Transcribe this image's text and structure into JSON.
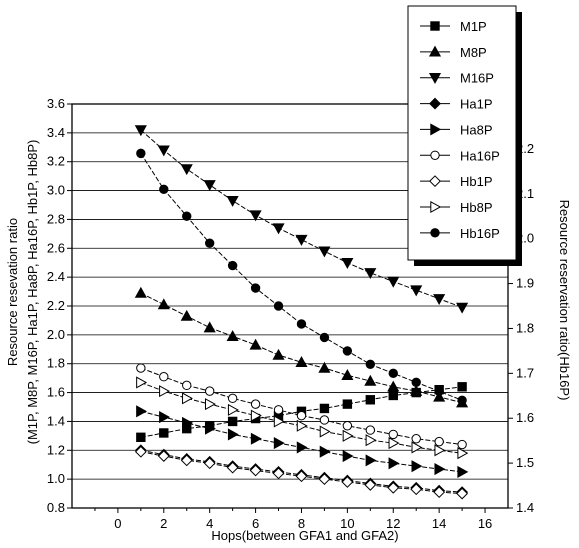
{
  "chart_data": {
    "type": "line",
    "xlabel": "Hops(between GFA1 and GFA2)",
    "ylabel_left_line1": "Resource resevation ratio",
    "ylabel_left_line2": "(M1P, M8P, M16P, Ha1P, Ha8P, Ha16P, Hb1P, Hb8P)",
    "ylabel_right": "Resource reservation ratio(Hb16P)",
    "xlim": [
      -2,
      17
    ],
    "ylim_left": [
      0.8,
      3.6
    ],
    "ylim_right": [
      1.4,
      2.3
    ],
    "x_ticks": [
      0,
      2,
      4,
      6,
      8,
      10,
      12,
      14,
      16
    ],
    "y_left_ticks": [
      0.8,
      1.0,
      1.2,
      1.4,
      1.6,
      1.8,
      2.0,
      2.2,
      2.4,
      2.6,
      2.8,
      3.0,
      3.2,
      3.4,
      3.6
    ],
    "y_right_ticks": [
      1.4,
      1.5,
      1.6,
      1.7,
      1.8,
      1.9,
      2.0,
      2.1,
      2.2
    ],
    "grid": "horizontal",
    "legend_position": "top-right",
    "x": [
      1,
      2,
      3,
      4,
      5,
      6,
      7,
      8,
      9,
      10,
      11,
      12,
      13,
      14,
      15
    ],
    "series": [
      {
        "name": "M1P",
        "marker": "square",
        "axis": "left",
        "values": [
          1.29,
          1.32,
          1.35,
          1.37,
          1.4,
          1.42,
          1.44,
          1.47,
          1.49,
          1.52,
          1.55,
          1.58,
          1.6,
          1.62,
          1.64
        ]
      },
      {
        "name": "M8P",
        "marker": "triangle-up",
        "axis": "left",
        "values": [
          2.29,
          2.21,
          2.13,
          2.05,
          1.99,
          1.93,
          1.86,
          1.81,
          1.77,
          1.72,
          1.68,
          1.64,
          1.61,
          1.57,
          1.53
        ]
      },
      {
        "name": "M16P",
        "marker": "triangle-down",
        "axis": "left",
        "values": [
          3.42,
          3.28,
          3.15,
          3.04,
          2.93,
          2.83,
          2.74,
          2.66,
          2.58,
          2.5,
          2.43,
          2.37,
          2.31,
          2.25,
          2.19
        ]
      },
      {
        "name": "Ha1P",
        "marker": "diamond",
        "axis": "left",
        "values": [
          1.2,
          1.17,
          1.14,
          1.12,
          1.09,
          1.07,
          1.05,
          1.03,
          1.01,
          0.99,
          0.97,
          0.95,
          0.94,
          0.92,
          0.91
        ]
      },
      {
        "name": "Ha8P",
        "marker": "triangle-right",
        "axis": "left",
        "values": [
          1.47,
          1.43,
          1.39,
          1.35,
          1.31,
          1.28,
          1.25,
          1.22,
          1.19,
          1.16,
          1.13,
          1.11,
          1.09,
          1.07,
          1.05
        ]
      },
      {
        "name": "Ha16P",
        "marker": "circle-open",
        "axis": "left",
        "values": [
          1.77,
          1.71,
          1.65,
          1.61,
          1.56,
          1.52,
          1.48,
          1.44,
          1.41,
          1.37,
          1.34,
          1.31,
          1.28,
          1.26,
          1.24
        ]
      },
      {
        "name": "Hb1P",
        "marker": "diamond-open",
        "axis": "left",
        "values": [
          1.19,
          1.16,
          1.13,
          1.11,
          1.08,
          1.06,
          1.04,
          1.02,
          1.0,
          0.98,
          0.96,
          0.94,
          0.93,
          0.91,
          0.9
        ]
      },
      {
        "name": "Hb8P",
        "marker": "triangle-right-open",
        "axis": "left",
        "values": [
          1.67,
          1.61,
          1.56,
          1.52,
          1.48,
          1.44,
          1.4,
          1.37,
          1.33,
          1.3,
          1.27,
          1.25,
          1.22,
          1.2,
          1.18
        ]
      },
      {
        "name": "Hb16P",
        "marker": "circle",
        "axis": "right",
        "values": [
          2.19,
          2.11,
          2.05,
          1.99,
          1.94,
          1.89,
          1.85,
          1.81,
          1.78,
          1.75,
          1.72,
          1.7,
          1.68,
          1.66,
          1.64
        ]
      }
    ]
  }
}
